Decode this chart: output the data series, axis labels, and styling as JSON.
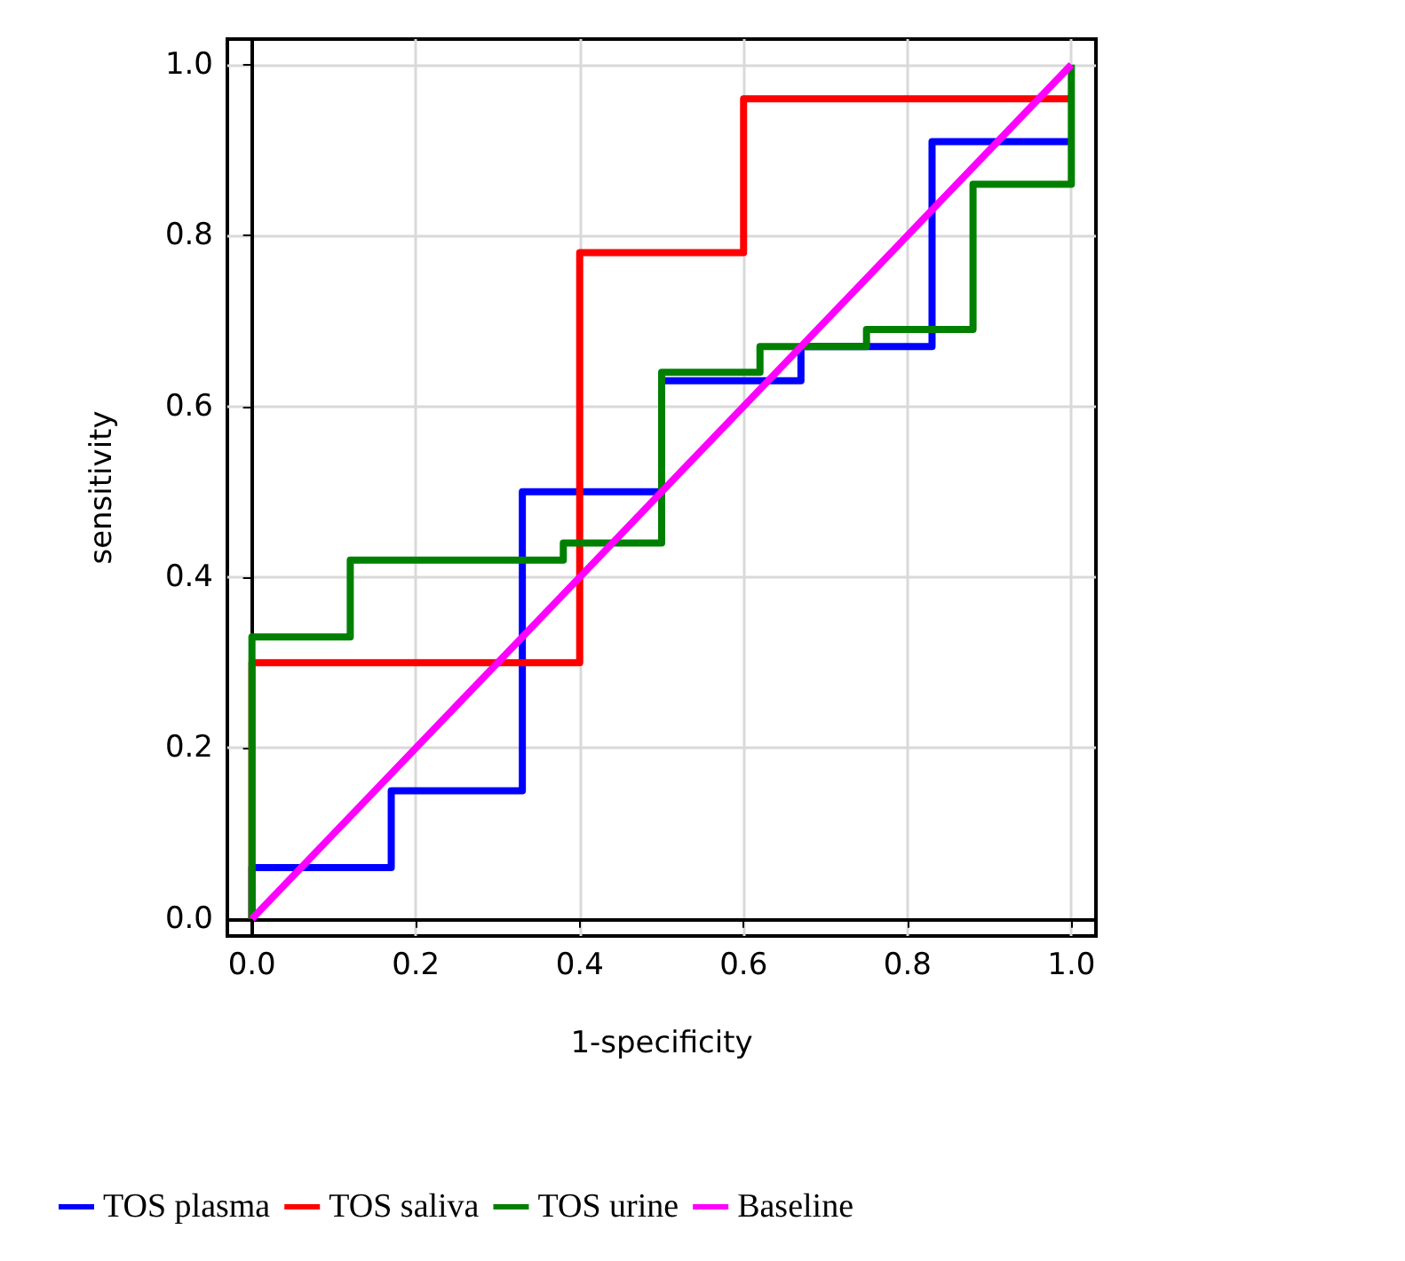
{
  "chart_data": {
    "type": "step",
    "xlabel": "1-specificity",
    "ylabel": "sensitivity",
    "xlim": [
      -0.03,
      1.03
    ],
    "ylim": [
      -0.02,
      1.03
    ],
    "xticks": [
      {
        "value": 0,
        "label": "0.0"
      },
      {
        "value": 0.2,
        "label": "0.2"
      },
      {
        "value": 0.4,
        "label": "0.4"
      },
      {
        "value": 0.6,
        "label": "0.6"
      },
      {
        "value": 0.8,
        "label": "0.8"
      },
      {
        "value": 1,
        "label": "1.0"
      }
    ],
    "yticks": [
      {
        "value": 0,
        "label": "0.0"
      },
      {
        "value": 0.2,
        "label": "0.2"
      },
      {
        "value": 0.4,
        "label": "0.4"
      },
      {
        "value": 0.6,
        "label": "0.6"
      },
      {
        "value": 0.8,
        "label": "0.8"
      },
      {
        "value": 1,
        "label": "1.0"
      }
    ],
    "grid": true,
    "legend": "bottom",
    "line_style": "solid",
    "marker": "none",
    "series": [
      {
        "name": "TOS plasma",
        "color": "#0000ff",
        "x": [
          0,
          0,
          0.17,
          0.33,
          0.5,
          0.67,
          0.83,
          1
        ],
        "values": [
          0,
          0.06,
          0.15,
          0.5,
          0.63,
          0.67,
          0.91,
          0.91
        ]
      },
      {
        "name": "TOS saliva",
        "color": "#ff0000",
        "x": [
          0,
          0,
          0.4,
          0.6,
          1
        ],
        "values": [
          0,
          0.3,
          0.78,
          0.96,
          0.96
        ]
      },
      {
        "name": "TOS urine",
        "color": "#008000",
        "x": [
          0,
          0,
          0.12,
          0.38,
          0.5,
          0.62,
          0.75,
          0.88,
          1,
          1
        ],
        "values": [
          0,
          0.33,
          0.42,
          0.44,
          0.64,
          0.67,
          0.69,
          0.86,
          0.86,
          1
        ]
      },
      {
        "name": "Baseline",
        "color": "#ff00ff",
        "type": "line",
        "x": [
          0,
          1
        ],
        "values": [
          0,
          1
        ]
      }
    ]
  }
}
